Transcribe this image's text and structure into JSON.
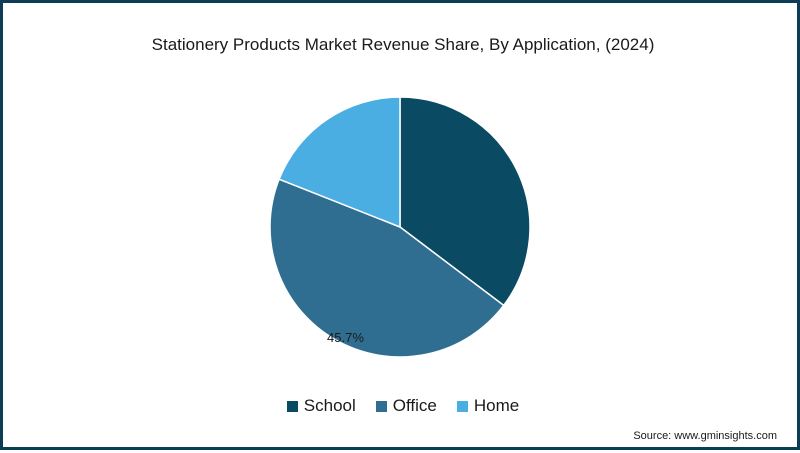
{
  "chart_data": {
    "type": "pie",
    "title": "Stationery Products Market Revenue Share, By Application, (2024)",
    "categories": [
      "School",
      "Office",
      "Home"
    ],
    "values": [
      35.3,
      45.7,
      19.0
    ],
    "colors": [
      "#0b4a63",
      "#2f6e91",
      "#4aaee3"
    ],
    "labels": [
      "",
      "45.7%",
      ""
    ],
    "legend_position": "bottom-center"
  },
  "source": "Source: www.gminsights.com"
}
